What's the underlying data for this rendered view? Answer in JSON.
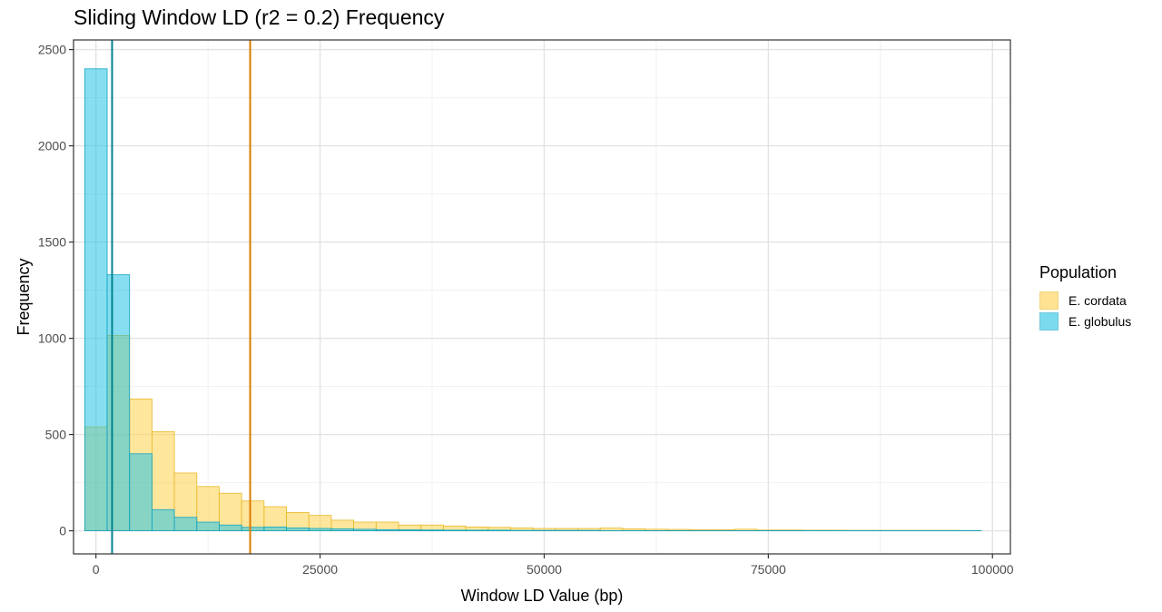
{
  "chart_data": {
    "type": "histogram",
    "title": "Sliding Window LD (r2 = 0.2) Frequency",
    "xlabel": "Window LD Value (bp)",
    "ylabel": "Frequency",
    "xlim": [
      -2500,
      102000
    ],
    "ylim": [
      -120,
      2550
    ],
    "x_ticks": [
      0,
      25000,
      50000,
      75000,
      100000
    ],
    "x_tick_labels": [
      "0",
      "25000",
      "50000",
      "75000",
      "100000"
    ],
    "y_ticks": [
      0,
      500,
      1000,
      1500,
      2000,
      2500
    ],
    "y_tick_labels": [
      "0",
      "500",
      "1000",
      "1500",
      "2000",
      "2500"
    ],
    "grid": true,
    "legend": {
      "title": "Population",
      "position": "right",
      "entries": [
        "E. cordata",
        "E. globulus"
      ]
    },
    "bin_start": -1250,
    "bin_width": 2500,
    "series": [
      {
        "name": "E. cordata",
        "fill": "#FFD24D",
        "stroke": "#E8B92A",
        "mean_line": 17200,
        "mean_color": "#D97B00",
        "values": [
          540,
          1015,
          685,
          515,
          300,
          230,
          195,
          155,
          125,
          95,
          80,
          55,
          45,
          45,
          30,
          30,
          25,
          20,
          18,
          15,
          12,
          12,
          12,
          14,
          10,
          8,
          7,
          6,
          6,
          8,
          4,
          4,
          3,
          3,
          2,
          2,
          2,
          2,
          2,
          1
        ]
      },
      {
        "name": "E. globulus",
        "fill": "#24C3E3",
        "stroke": "#0FA5C4",
        "mean_line": 1800,
        "mean_color": "#00838F",
        "values": [
          2400,
          1330,
          400,
          110,
          70,
          45,
          30,
          18,
          20,
          15,
          12,
          10,
          8,
          6,
          5,
          4,
          3,
          3,
          3,
          2,
          2,
          2,
          2,
          1,
          1,
          1,
          1,
          1,
          1,
          1,
          1,
          1,
          1,
          1,
          1,
          1,
          1,
          1,
          1,
          1
        ]
      }
    ]
  }
}
